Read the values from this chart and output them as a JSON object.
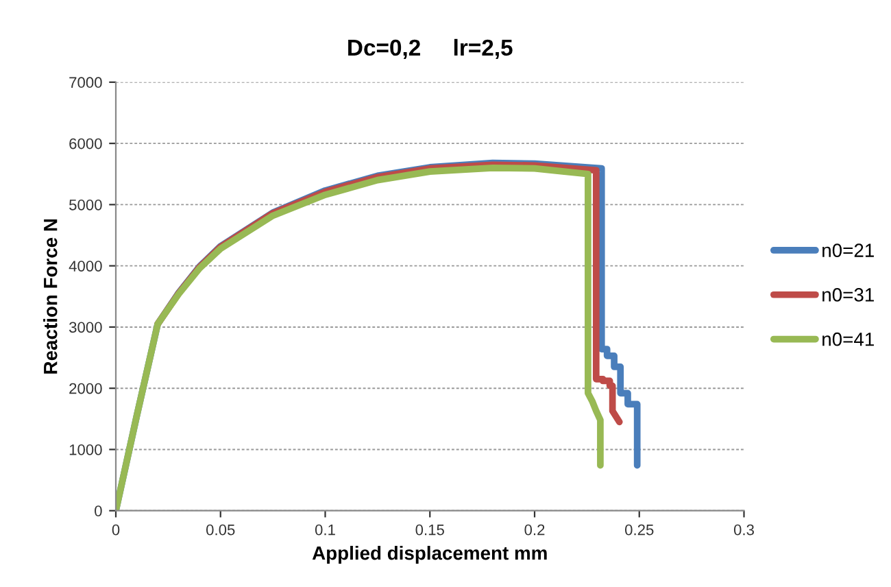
{
  "chart_data": {
    "type": "line",
    "title": "Dc=0,2     lr=2,5",
    "xlabel": "Applied displacement mm",
    "ylabel": "Reaction Force N",
    "xlim": [
      0,
      0.3
    ],
    "xticks": [
      0,
      0.05,
      0.1,
      0.15,
      0.2,
      0.25,
      0.3
    ],
    "ylim": [
      0,
      7000
    ],
    "yticks": [
      0,
      1000,
      2000,
      3000,
      4000,
      5000,
      6000,
      7000
    ],
    "grid": "y",
    "legend": "right",
    "marker": "none",
    "line_style": "solid",
    "series": [
      {
        "name": "n0=21",
        "color": "#4a7ebb",
        "x": [
          0,
          0.01,
          0.02,
          0.03,
          0.04,
          0.05,
          0.075,
          0.1,
          0.125,
          0.15,
          0.18,
          0.2,
          0.232,
          0.232,
          0.2346,
          0.2346,
          0.238,
          0.238,
          0.241,
          0.241,
          0.2445,
          0.2445,
          0.249,
          0.249
        ],
        "values": [
          0,
          1550,
          3050,
          3560,
          3990,
          4320,
          4870,
          5230,
          5470,
          5610,
          5680,
          5670,
          5590,
          2640,
          2640,
          2530,
          2530,
          2350,
          2350,
          1920,
          1920,
          1740,
          1740,
          740
        ]
      },
      {
        "name": "n0=31",
        "color": "#be4b48",
        "x": [
          0.02,
          0.03,
          0.04,
          0.05,
          0.075,
          0.1,
          0.125,
          0.15,
          0.18,
          0.2,
          0.2294,
          0.2294,
          0.2326,
          0.2326,
          0.2359,
          0.2359,
          0.2372,
          0.2372,
          0.2405
        ],
        "values": [
          3050,
          3550,
          3980,
          4310,
          4860,
          5210,
          5450,
          5590,
          5650,
          5640,
          5560,
          2150,
          2150,
          2120,
          2120,
          2040,
          2040,
          1630,
          1450
        ]
      },
      {
        "name": "n0=41",
        "color": "#98b954",
        "x": [
          0,
          0.01,
          0.02,
          0.03,
          0.04,
          0.05,
          0.075,
          0.1,
          0.125,
          0.15,
          0.18,
          0.2,
          0.2255,
          0.2255,
          0.2275,
          0.2294,
          0.2314,
          0.2314
        ],
        "values": [
          0,
          1550,
          3050,
          3540,
          3960,
          4280,
          4820,
          5160,
          5400,
          5540,
          5600,
          5590,
          5500,
          1920,
          1790,
          1630,
          1480,
          740
        ]
      }
    ]
  }
}
